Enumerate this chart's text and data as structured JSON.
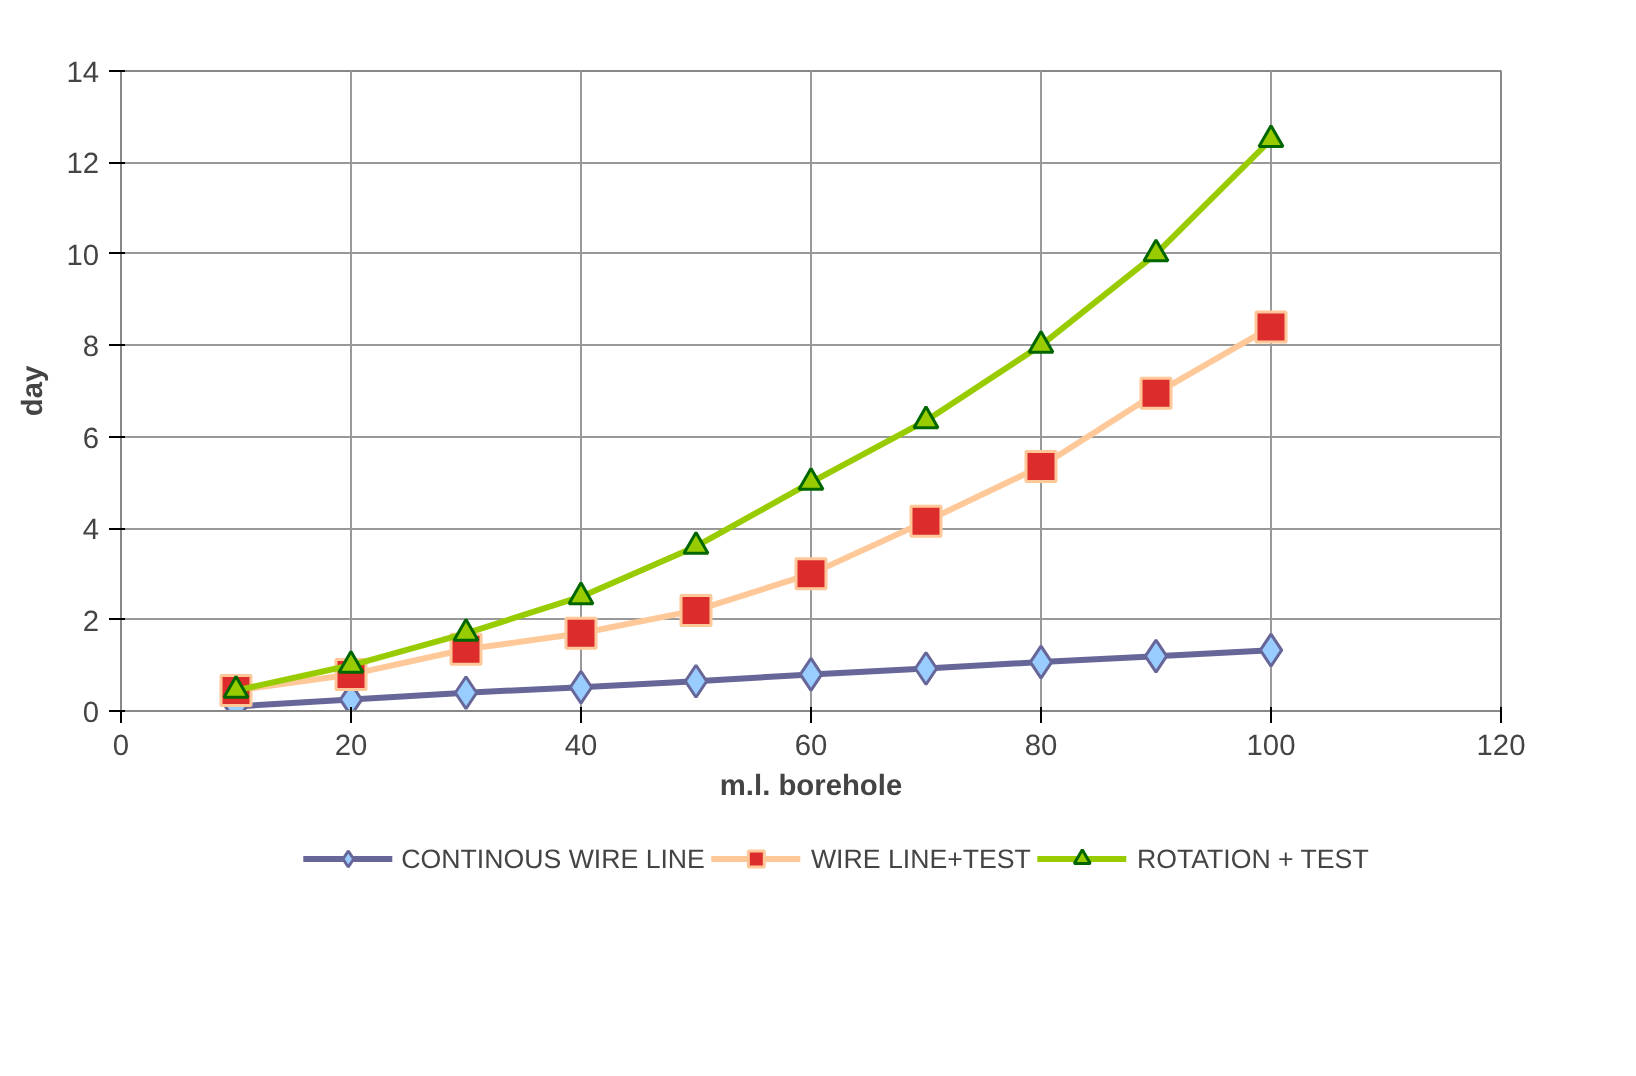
{
  "chart_data": {
    "type": "line",
    "xlabel": "m.l. borehole",
    "ylabel": "day",
    "x": [
      10,
      20,
      30,
      40,
      50,
      60,
      70,
      80,
      90,
      100
    ],
    "series": [
      {
        "name": "CONTINOUS WIRE LINE",
        "color": "#666699",
        "marker": "diamond",
        "colors": [
          "#99ccff",
          "#99ccff",
          "#99ccff",
          "#99ccff",
          "#99ccff",
          "#99ccff",
          "#99ccff",
          "#99ccff",
          "#99ccff",
          "#99ccff"
        ],
        "values": [
          0.1,
          0.25,
          0.4,
          0.52,
          0.65,
          0.8,
          0.93,
          1.07,
          1.2,
          1.33
        ]
      },
      {
        "name": "WIRE LINE+TEST",
        "color": "#ffc899",
        "marker": "square",
        "colors": [
          "#dd2c2c",
          "#dd2c2c",
          "#dd2c2c",
          "#dd2c2c",
          "#dd2c2c",
          "#dd2c2c",
          "#dd2c2c",
          "#dd2c2c",
          "#dd2c2c",
          "#dd2c2c"
        ],
        "values": [
          0.45,
          0.8,
          1.35,
          1.7,
          2.2,
          3.0,
          4.15,
          5.35,
          6.95,
          8.4
        ]
      },
      {
        "name": "ROTATION + TEST",
        "color": "#99cc00",
        "marker": "triangle",
        "colors": [
          "#99cc00",
          "#99cc00",
          "#99cc00",
          "#99cc00",
          "#99cc00",
          "#99cc00",
          "#99cc00",
          "#99cc00",
          "#99cc00",
          "#99cc00"
        ],
        "values": [
          0.45,
          1.0,
          1.7,
          2.5,
          3.6,
          5.0,
          6.35,
          8.0,
          10.0,
          12.5
        ]
      }
    ],
    "xlim": [
      0,
      120
    ],
    "xticks": [
      0,
      20,
      40,
      60,
      80,
      100,
      120
    ],
    "ylim": [
      0,
      14
    ],
    "yticks": [
      0,
      2,
      4,
      6,
      8,
      10,
      12,
      14
    ],
    "grid": true,
    "legend": "bottom",
    "line_style": "solid"
  }
}
